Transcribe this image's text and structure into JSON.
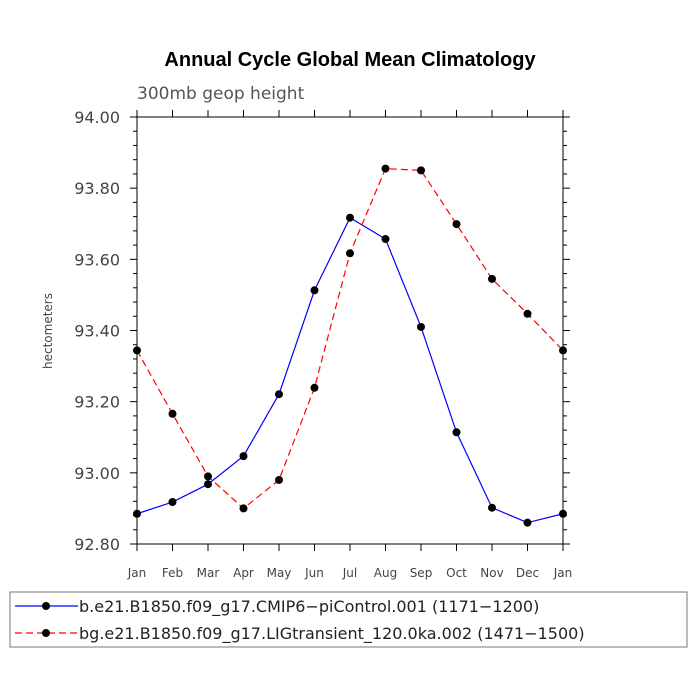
{
  "chart_data": {
    "type": "line",
    "title": "Annual Cycle Global Mean Climatology",
    "subtitle": "300mb geop height",
    "ylabel": "hectometers",
    "xlabel": "",
    "categories": [
      "Jan",
      "Feb",
      "Mar",
      "Apr",
      "May",
      "Jun",
      "Jul",
      "Aug",
      "Sep",
      "Oct",
      "Nov",
      "Dec",
      "Jan"
    ],
    "ylim": [
      92.8,
      94.0
    ],
    "yticks": [
      "92.80",
      "93.00",
      "93.20",
      "93.40",
      "93.60",
      "93.80",
      "94.00"
    ],
    "grid": false,
    "legend_position": "bottom",
    "series": [
      {
        "name": "b.e21.B1850.f09_g17.CMIP6−piControl.001 (1171−1200)",
        "color": "#0000ff",
        "style": "solid",
        "values": [
          92.885,
          92.918,
          92.968,
          93.047,
          93.221,
          93.513,
          93.717,
          93.657,
          93.41,
          93.114,
          92.902,
          92.86,
          92.885
        ]
      },
      {
        "name": "bg.e21.B1850.f09_g17.LIGtransient_120.0ka.002 (1471−1500)",
        "color": "#ff0000",
        "style": "dashed",
        "values": [
          93.344,
          93.166,
          92.99,
          92.9,
          92.98,
          93.239,
          93.617,
          93.855,
          93.85,
          93.699,
          93.545,
          93.447,
          93.344
        ]
      }
    ]
  }
}
